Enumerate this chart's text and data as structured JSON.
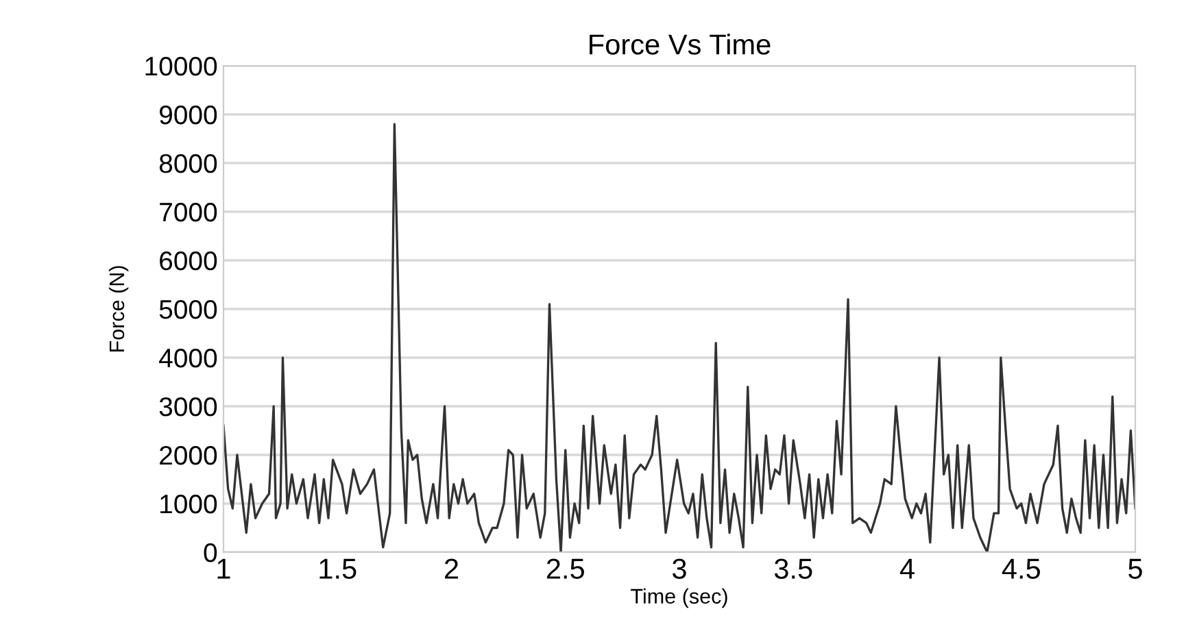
{
  "chart_data": {
    "type": "line",
    "title": "Force Vs Time",
    "xlabel": "Time (sec)",
    "ylabel": "Force (N)",
    "xlim": [
      1,
      5
    ],
    "xticks": [
      1,
      1.5,
      2,
      2.5,
      3,
      3.5,
      4,
      4.5,
      5
    ],
    "ylim": [
      0,
      10000
    ],
    "yticks": [
      0,
      1000,
      2000,
      3000,
      4000,
      5000,
      6000,
      7000,
      8000,
      9000,
      10000
    ],
    "grid": "y",
    "marker": "none",
    "line_style": "solid",
    "series": [
      {
        "color": "#333333",
        "x": [
          1.0,
          1.02,
          1.04,
          1.06,
          1.08,
          1.1,
          1.12,
          1.14,
          1.17,
          1.2,
          1.22,
          1.23,
          1.25,
          1.26,
          1.28,
          1.3,
          1.32,
          1.35,
          1.37,
          1.4,
          1.42,
          1.44,
          1.46,
          1.48,
          1.52,
          1.54,
          1.57,
          1.6,
          1.63,
          1.66,
          1.68,
          1.7,
          1.73,
          1.75,
          1.78,
          1.8,
          1.81,
          1.83,
          1.85,
          1.87,
          1.89,
          1.92,
          1.94,
          1.97,
          1.99,
          2.01,
          2.03,
          2.05,
          2.07,
          2.1,
          2.12,
          2.15,
          2.18,
          2.2,
          2.23,
          2.25,
          2.27,
          2.29,
          2.31,
          2.33,
          2.36,
          2.39,
          2.41,
          2.43,
          2.46,
          2.48,
          2.5,
          2.52,
          2.54,
          2.56,
          2.58,
          2.6,
          2.62,
          2.65,
          2.67,
          2.7,
          2.72,
          2.74,
          2.76,
          2.78,
          2.8,
          2.83,
          2.85,
          2.88,
          2.9,
          2.92,
          2.94,
          2.96,
          2.99,
          3.02,
          3.04,
          3.06,
          3.08,
          3.1,
          3.12,
          3.14,
          3.16,
          3.18,
          3.2,
          3.22,
          3.24,
          3.26,
          3.28,
          3.3,
          3.32,
          3.34,
          3.36,
          3.38,
          3.4,
          3.42,
          3.44,
          3.46,
          3.48,
          3.5,
          3.53,
          3.55,
          3.57,
          3.59,
          3.61,
          3.63,
          3.65,
          3.67,
          3.69,
          3.71,
          3.74,
          3.76,
          3.79,
          3.82,
          3.84,
          3.86,
          3.88,
          3.9,
          3.93,
          3.95,
          3.97,
          3.99,
          4.02,
          4.04,
          4.06,
          4.08,
          4.1,
          4.14,
          4.16,
          4.18,
          4.2,
          4.22,
          4.24,
          4.27,
          4.29,
          4.32,
          4.35,
          4.38,
          4.4,
          4.41,
          4.43,
          4.45,
          4.48,
          4.5,
          4.52,
          4.54,
          4.57,
          4.6,
          4.62,
          4.64,
          4.66,
          4.68,
          4.7,
          4.72,
          4.74,
          4.76,
          4.78,
          4.8,
          4.82,
          4.84,
          4.86,
          4.88,
          4.9,
          4.92,
          4.94,
          4.96,
          4.98,
          5.0
        ],
        "values": [
          2600,
          1300,
          900,
          2000,
          1200,
          400,
          1400,
          700,
          1000,
          1200,
          3000,
          700,
          1000,
          4000,
          900,
          1600,
          1000,
          1500,
          700,
          1600,
          600,
          1500,
          700,
          1900,
          1400,
          800,
          1700,
          1200,
          1400,
          1700,
          900,
          100,
          800,
          8800,
          2500,
          600,
          2300,
          1900,
          2000,
          1100,
          600,
          1400,
          700,
          3000,
          700,
          1400,
          1000,
          1500,
          1000,
          1200,
          600,
          200,
          500,
          500,
          1000,
          2100,
          2000,
          300,
          2000,
          900,
          1200,
          300,
          800,
          5100,
          1500,
          0,
          2100,
          300,
          1000,
          600,
          2600,
          900,
          2800,
          1000,
          2200,
          1200,
          1800,
          500,
          2400,
          700,
          1600,
          1800,
          1700,
          2000,
          2800,
          1700,
          400,
          1000,
          1900,
          1000,
          800,
          1200,
          300,
          1600,
          700,
          100,
          4300,
          600,
          1700,
          400,
          1200,
          700,
          100,
          3400,
          600,
          2000,
          800,
          2400,
          1300,
          1700,
          1600,
          2400,
          1000,
          2300,
          1400,
          700,
          1600,
          300,
          1500,
          700,
          1600,
          800,
          2700,
          1600,
          5200,
          600,
          700,
          600,
          400,
          700,
          1000,
          1500,
          1400,
          3000,
          2000,
          1100,
          700,
          1000,
          800,
          1200,
          200,
          4000,
          1600,
          2000,
          500,
          2200,
          500,
          2200,
          700,
          300,
          0,
          800,
          800,
          4000,
          2600,
          1300,
          900,
          1000,
          600,
          1200,
          600,
          1400,
          1600,
          1800,
          2600,
          900,
          400,
          1100,
          700,
          400,
          2300,
          700,
          2200,
          500,
          2000,
          500,
          3200,
          600,
          1500,
          800,
          2500,
          900
        ]
      }
    ]
  }
}
